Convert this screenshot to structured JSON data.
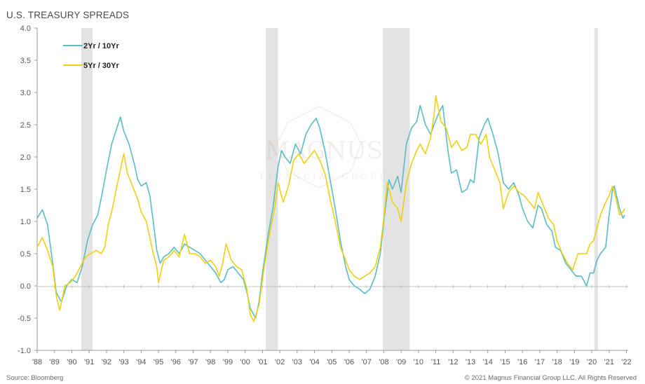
{
  "chart_data": {
    "type": "line",
    "title": "U.S. TREASURY SPREADS",
    "xlabel": "",
    "ylabel": "",
    "xlim": [
      1988.0,
      2022.1
    ],
    "ylim": [
      -1.0,
      4.0
    ],
    "yticks": [
      -1.0,
      -0.5,
      0.0,
      0.5,
      1.0,
      1.5,
      2.0,
      2.5,
      3.0,
      3.5,
      4.0
    ],
    "ytick_labels": [
      "-1.0",
      "-0.5",
      "0.0",
      "0.5",
      "1.0",
      "1.5",
      "2.0",
      "2.5",
      "3.0",
      "3.5",
      "4.0"
    ],
    "xticks": [
      1988,
      1989,
      1990,
      1991,
      1992,
      1993,
      1994,
      1995,
      1996,
      1997,
      1998,
      1999,
      2000,
      2001,
      2002,
      2003,
      2004,
      2005,
      2006,
      2007,
      2008,
      2009,
      2010,
      2011,
      2012,
      2013,
      2014,
      2015,
      2016,
      2017,
      2018,
      2019,
      2020,
      2021,
      2022
    ],
    "xtick_labels": [
      "'88",
      "'89",
      "'90",
      "'91",
      "'92",
      "'93",
      "'94",
      "'95",
      "'96",
      "'97",
      "'98",
      "'99",
      "'00",
      "'01",
      "'02",
      "'03",
      "'04",
      "'05",
      "'06",
      "'07",
      "'08",
      "'09",
      "'10",
      "'11",
      "'12",
      "'13",
      "'14",
      "'15",
      "'16",
      "'17",
      "'18",
      "'19",
      "'20",
      "'21",
      "'22"
    ],
    "recessions": [
      [
        1990.55,
        1991.2
      ],
      [
        2001.2,
        2001.9
      ],
      [
        2007.95,
        2009.5
      ],
      [
        2020.15,
        2020.35
      ]
    ],
    "legend_position": "top-left",
    "series": [
      {
        "name": "2Yr / 10Yr",
        "color": "#5bbcc4",
        "points": [
          [
            1988.0,
            1.05
          ],
          [
            1988.3,
            1.18
          ],
          [
            1988.6,
            0.95
          ],
          [
            1988.9,
            0.35
          ],
          [
            1989.1,
            -0.1
          ],
          [
            1989.4,
            -0.25
          ],
          [
            1989.7,
            0.0
          ],
          [
            1990.0,
            0.1
          ],
          [
            1990.3,
            0.05
          ],
          [
            1990.6,
            0.3
          ],
          [
            1990.9,
            0.7
          ],
          [
            1991.2,
            0.95
          ],
          [
            1991.5,
            1.1
          ],
          [
            1991.8,
            1.5
          ],
          [
            1992.0,
            1.8
          ],
          [
            1992.3,
            2.2
          ],
          [
            1992.6,
            2.45
          ],
          [
            1992.8,
            2.62
          ],
          [
            1993.0,
            2.4
          ],
          [
            1993.3,
            2.2
          ],
          [
            1993.6,
            1.9
          ],
          [
            1993.8,
            1.65
          ],
          [
            1994.0,
            1.55
          ],
          [
            1994.3,
            1.6
          ],
          [
            1994.5,
            1.4
          ],
          [
            1994.7,
            1.0
          ],
          [
            1994.9,
            0.55
          ],
          [
            1995.1,
            0.35
          ],
          [
            1995.3,
            0.45
          ],
          [
            1995.6,
            0.5
          ],
          [
            1995.9,
            0.6
          ],
          [
            1996.2,
            0.5
          ],
          [
            1996.5,
            0.65
          ],
          [
            1996.8,
            0.6
          ],
          [
            1997.1,
            0.55
          ],
          [
            1997.4,
            0.5
          ],
          [
            1997.7,
            0.4
          ],
          [
            1998.0,
            0.3
          ],
          [
            1998.3,
            0.2
          ],
          [
            1998.6,
            0.05
          ],
          [
            1998.8,
            0.1
          ],
          [
            1999.0,
            0.25
          ],
          [
            1999.3,
            0.3
          ],
          [
            1999.6,
            0.2
          ],
          [
            1999.9,
            0.1
          ],
          [
            2000.1,
            -0.1
          ],
          [
            2000.3,
            -0.35
          ],
          [
            2000.6,
            -0.5
          ],
          [
            2000.8,
            -0.25
          ],
          [
            2001.0,
            0.2
          ],
          [
            2001.3,
            0.75
          ],
          [
            2001.6,
            1.2
          ],
          [
            2001.9,
            1.85
          ],
          [
            2002.1,
            2.1
          ],
          [
            2002.3,
            2.0
          ],
          [
            2002.6,
            1.9
          ],
          [
            2002.9,
            2.2
          ],
          [
            2003.2,
            2.05
          ],
          [
            2003.5,
            2.35
          ],
          [
            2003.8,
            2.5
          ],
          [
            2004.1,
            2.6
          ],
          [
            2004.3,
            2.45
          ],
          [
            2004.6,
            2.1
          ],
          [
            2004.9,
            1.65
          ],
          [
            2005.2,
            1.2
          ],
          [
            2005.5,
            0.7
          ],
          [
            2005.8,
            0.3
          ],
          [
            2006.0,
            0.1
          ],
          [
            2006.3,
            0.0
          ],
          [
            2006.6,
            -0.05
          ],
          [
            2006.9,
            -0.12
          ],
          [
            2007.2,
            -0.05
          ],
          [
            2007.5,
            0.15
          ],
          [
            2007.8,
            0.5
          ],
          [
            2008.0,
            1.0
          ],
          [
            2008.3,
            1.65
          ],
          [
            2008.5,
            1.5
          ],
          [
            2008.8,
            1.7
          ],
          [
            2009.0,
            1.45
          ],
          [
            2009.3,
            2.2
          ],
          [
            2009.6,
            2.45
          ],
          [
            2009.9,
            2.55
          ],
          [
            2010.1,
            2.8
          ],
          [
            2010.4,
            2.5
          ],
          [
            2010.7,
            2.35
          ],
          [
            2010.9,
            2.5
          ],
          [
            2011.2,
            2.7
          ],
          [
            2011.4,
            2.8
          ],
          [
            2011.7,
            2.1
          ],
          [
            2011.9,
            1.75
          ],
          [
            2012.2,
            1.8
          ],
          [
            2012.5,
            1.45
          ],
          [
            2012.8,
            1.5
          ],
          [
            2013.0,
            1.65
          ],
          [
            2013.2,
            1.6
          ],
          [
            2013.5,
            2.3
          ],
          [
            2013.8,
            2.5
          ],
          [
            2014.0,
            2.6
          ],
          [
            2014.3,
            2.35
          ],
          [
            2014.6,
            2.05
          ],
          [
            2014.9,
            1.6
          ],
          [
            2015.2,
            1.5
          ],
          [
            2015.5,
            1.6
          ],
          [
            2015.8,
            1.4
          ],
          [
            2016.0,
            1.2
          ],
          [
            2016.3,
            1.0
          ],
          [
            2016.6,
            0.9
          ],
          [
            2016.9,
            1.25
          ],
          [
            2017.1,
            1.2
          ],
          [
            2017.4,
            0.95
          ],
          [
            2017.7,
            0.85
          ],
          [
            2017.9,
            0.6
          ],
          [
            2018.2,
            0.55
          ],
          [
            2018.5,
            0.35
          ],
          [
            2018.8,
            0.25
          ],
          [
            2019.1,
            0.15
          ],
          [
            2019.4,
            0.15
          ],
          [
            2019.7,
            0.0
          ],
          [
            2019.9,
            0.2
          ],
          [
            2020.1,
            0.2
          ],
          [
            2020.3,
            0.4
          ],
          [
            2020.5,
            0.5
          ],
          [
            2020.8,
            0.6
          ],
          [
            2021.0,
            1.1
          ],
          [
            2021.2,
            1.5
          ],
          [
            2021.3,
            1.55
          ],
          [
            2021.6,
            1.2
          ],
          [
            2021.8,
            1.05
          ],
          [
            2021.9,
            1.1
          ]
        ]
      },
      {
        "name": "5Yr / 30Yr",
        "color": "#f2d00f",
        "points": [
          [
            1988.0,
            0.6
          ],
          [
            1988.3,
            0.75
          ],
          [
            1988.6,
            0.55
          ],
          [
            1988.9,
            0.3
          ],
          [
            1989.1,
            -0.15
          ],
          [
            1989.3,
            -0.38
          ],
          [
            1989.6,
            0.0
          ],
          [
            1989.9,
            0.05
          ],
          [
            1990.2,
            0.15
          ],
          [
            1990.5,
            0.3
          ],
          [
            1990.8,
            0.45
          ],
          [
            1991.1,
            0.5
          ],
          [
            1991.4,
            0.55
          ],
          [
            1991.7,
            0.5
          ],
          [
            1991.9,
            0.6
          ],
          [
            1992.1,
            0.95
          ],
          [
            1992.3,
            1.15
          ],
          [
            1992.6,
            1.55
          ],
          [
            1992.8,
            1.8
          ],
          [
            1993.0,
            2.05
          ],
          [
            1993.2,
            1.75
          ],
          [
            1993.5,
            1.55
          ],
          [
            1993.8,
            1.35
          ],
          [
            1994.0,
            1.15
          ],
          [
            1994.3,
            1.0
          ],
          [
            1994.5,
            0.75
          ],
          [
            1994.7,
            0.5
          ],
          [
            1994.9,
            0.3
          ],
          [
            1995.0,
            0.05
          ],
          [
            1995.3,
            0.4
          ],
          [
            1995.6,
            0.45
          ],
          [
            1995.9,
            0.55
          ],
          [
            1996.2,
            0.45
          ],
          [
            1996.5,
            0.8
          ],
          [
            1996.8,
            0.5
          ],
          [
            1997.1,
            0.5
          ],
          [
            1997.4,
            0.45
          ],
          [
            1997.7,
            0.35
          ],
          [
            1998.0,
            0.4
          ],
          [
            1998.3,
            0.3
          ],
          [
            1998.5,
            0.15
          ],
          [
            1998.7,
            0.35
          ],
          [
            1998.9,
            0.65
          ],
          [
            1999.2,
            0.4
          ],
          [
            1999.5,
            0.3
          ],
          [
            1999.8,
            0.25
          ],
          [
            2000.1,
            -0.05
          ],
          [
            2000.3,
            -0.45
          ],
          [
            2000.5,
            -0.55
          ],
          [
            2000.8,
            -0.3
          ],
          [
            2001.1,
            0.3
          ],
          [
            2001.4,
            0.8
          ],
          [
            2001.7,
            1.2
          ],
          [
            2001.9,
            1.6
          ],
          [
            2002.2,
            1.3
          ],
          [
            2002.5,
            1.55
          ],
          [
            2002.8,
            1.95
          ],
          [
            2003.1,
            2.05
          ],
          [
            2003.4,
            1.9
          ],
          [
            2003.7,
            2.0
          ],
          [
            2004.0,
            2.1
          ],
          [
            2004.3,
            1.95
          ],
          [
            2004.6,
            1.75
          ],
          [
            2004.9,
            1.35
          ],
          [
            2005.2,
            1.0
          ],
          [
            2005.5,
            0.6
          ],
          [
            2005.8,
            0.4
          ],
          [
            2006.0,
            0.25
          ],
          [
            2006.3,
            0.15
          ],
          [
            2006.6,
            0.1
          ],
          [
            2006.9,
            0.15
          ],
          [
            2007.2,
            0.2
          ],
          [
            2007.5,
            0.3
          ],
          [
            2007.8,
            0.6
          ],
          [
            2008.0,
            1.05
          ],
          [
            2008.2,
            1.6
          ],
          [
            2008.5,
            1.3
          ],
          [
            2008.8,
            1.2
          ],
          [
            2009.0,
            1.0
          ],
          [
            2009.3,
            1.6
          ],
          [
            2009.6,
            1.9
          ],
          [
            2009.9,
            2.1
          ],
          [
            2010.1,
            2.2
          ],
          [
            2010.4,
            2.05
          ],
          [
            2010.7,
            2.3
          ],
          [
            2010.9,
            2.65
          ],
          [
            2011.0,
            2.95
          ],
          [
            2011.3,
            2.55
          ],
          [
            2011.6,
            2.45
          ],
          [
            2011.9,
            2.15
          ],
          [
            2012.2,
            2.25
          ],
          [
            2012.5,
            2.1
          ],
          [
            2012.8,
            2.15
          ],
          [
            2013.0,
            2.35
          ],
          [
            2013.3,
            2.35
          ],
          [
            2013.6,
            2.2
          ],
          [
            2013.9,
            2.35
          ],
          [
            2014.1,
            2.0
          ],
          [
            2014.4,
            1.8
          ],
          [
            2014.7,
            1.6
          ],
          [
            2014.9,
            1.2
          ],
          [
            2015.2,
            1.45
          ],
          [
            2015.5,
            1.55
          ],
          [
            2015.8,
            1.45
          ],
          [
            2016.1,
            1.4
          ],
          [
            2016.4,
            1.3
          ],
          [
            2016.7,
            1.2
          ],
          [
            2016.9,
            1.45
          ],
          [
            2017.2,
            1.25
          ],
          [
            2017.5,
            1.05
          ],
          [
            2017.8,
            0.95
          ],
          [
            2018.0,
            0.7
          ],
          [
            2018.3,
            0.5
          ],
          [
            2018.6,
            0.35
          ],
          [
            2018.9,
            0.25
          ],
          [
            2019.2,
            0.5
          ],
          [
            2019.5,
            0.5
          ],
          [
            2019.7,
            0.5
          ],
          [
            2019.9,
            0.65
          ],
          [
            2020.1,
            0.7
          ],
          [
            2020.3,
            0.9
          ],
          [
            2020.5,
            1.1
          ],
          [
            2020.8,
            1.3
          ],
          [
            2021.0,
            1.4
          ],
          [
            2021.2,
            1.55
          ],
          [
            2021.4,
            1.35
          ],
          [
            2021.6,
            1.1
          ],
          [
            2021.8,
            1.15
          ],
          [
            2021.9,
            1.2
          ]
        ]
      }
    ],
    "watermark": {
      "brand": "MAGNUS",
      "subtitle": "FINANCIAL GROUP"
    }
  },
  "footer": {
    "source": "Source: Bloomberg",
    "copyright": "© 2021 Magnus Financial Group LLC. All Rights Reserved"
  }
}
